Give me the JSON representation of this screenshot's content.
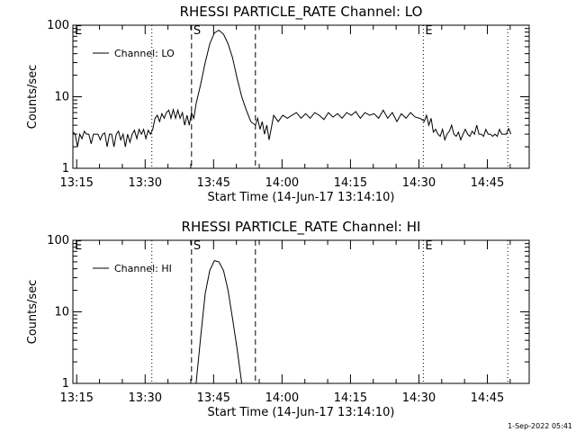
{
  "chart_data": [
    {
      "type": "line",
      "title": "RHESSI PARTICLE_RATE Channel: LO",
      "xlabel": "Start Time (14-Jun-17 13:14:10)",
      "ylabel": "Counts/sec",
      "y_scale": "log",
      "ylim": [
        1,
        100
      ],
      "x_unit": "minutes after 13:14:10",
      "xlim": [
        0,
        100
      ],
      "x_tick_labels": [
        "13:15",
        "13:30",
        "13:45",
        "14:00",
        "14:15",
        "14:30",
        "14:45"
      ],
      "y_tick_labels": [
        "1",
        "10",
        "100"
      ],
      "legend": "Channel: LO",
      "legend_position": "top-left",
      "markers": [
        {
          "label": "E",
          "x": 0.0,
          "style": "dotted"
        },
        {
          "label": "",
          "x": 17.3,
          "style": "dotted"
        },
        {
          "label": "S",
          "x": 26.0,
          "style": "dashed"
        },
        {
          "label": "",
          "x": 40.0,
          "style": "dashed"
        },
        {
          "label": "E",
          "x": 76.8,
          "style": "dotted"
        },
        {
          "label": "",
          "x": 95.3,
          "style": "dotted"
        }
      ],
      "series": [
        {
          "x": [
            0,
            0.5,
            1,
            1.5,
            2,
            2.5,
            3,
            3.5,
            4,
            4.5,
            5,
            5.5,
            6,
            6.5,
            7,
            7.5,
            8,
            8.5,
            9,
            9.5,
            10,
            10.5,
            11,
            11.5,
            12,
            12.5,
            13,
            13.5,
            14,
            14.5,
            15,
            15.5,
            16,
            16.5,
            17,
            17.5,
            18,
            18.5,
            19,
            19.5,
            20,
            20.5,
            21,
            21.5,
            22,
            22.5,
            23,
            23.5,
            24,
            24.5,
            25,
            25.5,
            26,
            26.5,
            27,
            28,
            29,
            30,
            31,
            32,
            33,
            34,
            35,
            36,
            37,
            38,
            39,
            40,
            40.5,
            41,
            41.5,
            42,
            42.5,
            43,
            44,
            45,
            46,
            47,
            48,
            49,
            50,
            51,
            52,
            53,
            54,
            55,
            56,
            57,
            58,
            59,
            60,
            61,
            62,
            63,
            64,
            65,
            66,
            67,
            68,
            69,
            70,
            71,
            72,
            73,
            74,
            75,
            76,
            76.5,
            77,
            77.5,
            78,
            78.5,
            79,
            79.5,
            80,
            80.5,
            81,
            81.5,
            82,
            82.5,
            83,
            83.5,
            84,
            84.5,
            85,
            85.5,
            86,
            86.5,
            87,
            87.5,
            88,
            88.5,
            89,
            89.5,
            90,
            90.5,
            91,
            91.5,
            92,
            92.5,
            93,
            93.5,
            94,
            94.5,
            95,
            95.5,
            96
          ],
          "values": [
            3.2,
            3.0,
            2.0,
            3.0,
            2.6,
            3.3,
            3.0,
            3.0,
            2.2,
            3.0,
            3.0,
            3.0,
            2.5,
            3.0,
            3.1,
            2.0,
            3.0,
            3.0,
            2.0,
            3.0,
            3.3,
            2.5,
            3.0,
            2.0,
            3.0,
            2.3,
            3.0,
            3.4,
            2.6,
            3.5,
            3.0,
            3.5,
            2.6,
            3.4,
            3.0,
            3.5,
            5.0,
            5.5,
            4.5,
            5.8,
            5.0,
            6.0,
            6.5,
            5.0,
            6.6,
            5.0,
            6.5,
            5.0,
            6.0,
            4.0,
            5.5,
            4.0,
            6.0,
            5.0,
            8.0,
            15,
            30,
            55,
            78,
            85,
            75,
            55,
            35,
            18,
            10,
            6.5,
            4.5,
            4.0,
            5.0,
            3.5,
            4.5,
            3.0,
            4.0,
            2.5,
            5.5,
            4.5,
            5.5,
            5.0,
            5.5,
            6.0,
            5.0,
            5.8,
            5.0,
            6.0,
            5.5,
            4.8,
            6.0,
            5.2,
            5.8,
            5.0,
            6.0,
            5.5,
            6.2,
            5.0,
            6.0,
            5.5,
            5.8,
            5.0,
            6.5,
            5.0,
            6.0,
            4.5,
            5.8,
            5.0,
            6.0,
            5.2,
            5.0,
            4.8,
            4.5,
            5.5,
            4.0,
            5.0,
            3.2,
            3.5,
            3.0,
            2.8,
            3.5,
            2.5,
            3.0,
            3.3,
            4.0,
            3.0,
            2.8,
            3.2,
            2.5,
            3.0,
            3.5,
            3.0,
            2.8,
            3.3,
            3.0,
            4.0,
            3.0,
            3.0,
            2.8,
            3.5,
            3.0,
            3.0,
            2.8,
            3.0,
            2.8,
            3.5,
            3.0,
            3.0,
            3.0,
            3.6,
            3.0
          ]
        }
      ]
    },
    {
      "type": "line",
      "title": "RHESSI PARTICLE_RATE Channel: HI",
      "xlabel": "Start Time (14-Jun-17 13:14:10)",
      "ylabel": "Counts/sec",
      "y_scale": "log",
      "ylim": [
        1,
        100
      ],
      "x_unit": "minutes after 13:14:10",
      "xlim": [
        0,
        100
      ],
      "x_tick_labels": [
        "13:15",
        "13:30",
        "13:45",
        "14:00",
        "14:15",
        "14:30",
        "14:45"
      ],
      "y_tick_labels": [
        "1",
        "10",
        "100"
      ],
      "legend": "Channel: HI",
      "legend_position": "top-left",
      "markers": [
        {
          "label": "E",
          "x": 0.0,
          "style": "dotted"
        },
        {
          "label": "",
          "x": 17.3,
          "style": "dotted"
        },
        {
          "label": "S",
          "x": 26.0,
          "style": "dashed"
        },
        {
          "label": "",
          "x": 40.0,
          "style": "dashed"
        },
        {
          "label": "E",
          "x": 76.8,
          "style": "dotted"
        },
        {
          "label": "",
          "x": 95.3,
          "style": "dotted"
        }
      ],
      "series": [
        {
          "x": [
            27,
            28,
            29,
            30,
            31,
            32,
            33,
            34,
            35,
            36,
            37
          ],
          "values": [
            1.0,
            4.5,
            18,
            38,
            52,
            50,
            38,
            20,
            8,
            3,
            1.0
          ]
        }
      ]
    }
  ],
  "timestamp": "1-Sep-2022 05:41"
}
